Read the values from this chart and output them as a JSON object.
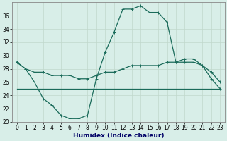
{
  "xlabel": "Humidex (Indice chaleur)",
  "ylabel": "",
  "bg_color": "#d8eee8",
  "grid_color": "#c0d8cc",
  "line_color": "#1a6b5a",
  "xlim": [
    -0.5,
    23.5
  ],
  "ylim": [
    20,
    38
  ],
  "yticks": [
    20,
    22,
    24,
    26,
    28,
    30,
    32,
    34,
    36
  ],
  "xticks": [
    0,
    1,
    2,
    3,
    4,
    5,
    6,
    7,
    8,
    9,
    10,
    11,
    12,
    13,
    14,
    15,
    16,
    17,
    18,
    19,
    20,
    21,
    22,
    23
  ],
  "series1_x": [
    0,
    1,
    2,
    3,
    4,
    5,
    6,
    7,
    8,
    9,
    10,
    11,
    12,
    13,
    14,
    15,
    16,
    17,
    18,
    19,
    20,
    21,
    22,
    23
  ],
  "series1_y": [
    29.0,
    28.0,
    26.0,
    23.5,
    22.5,
    21.0,
    20.5,
    20.5,
    21.0,
    26.5,
    30.5,
    33.5,
    37.0,
    37.0,
    37.5,
    36.5,
    36.5,
    35.0,
    29.0,
    29.5,
    29.5,
    28.5,
    26.5,
    25.0
  ],
  "series2_x": [
    0,
    1,
    2,
    3,
    4,
    5,
    6,
    7,
    8,
    9,
    10,
    11,
    12,
    13,
    14,
    15,
    16,
    17,
    18,
    19,
    20,
    21,
    22,
    23
  ],
  "series2_y": [
    25.0,
    25.0,
    25.0,
    25.0,
    25.0,
    25.0,
    25.0,
    25.0,
    25.0,
    25.0,
    25.0,
    25.0,
    25.0,
    25.0,
    25.0,
    25.0,
    25.0,
    25.0,
    25.0,
    25.0,
    25.0,
    25.0,
    25.0,
    25.0
  ],
  "series3_x": [
    0,
    1,
    2,
    3,
    4,
    5,
    6,
    7,
    8,
    9,
    10,
    11,
    12,
    13,
    14,
    15,
    16,
    17,
    18,
    19,
    20,
    21,
    22,
    23
  ],
  "series3_y": [
    29.0,
    28.0,
    27.5,
    27.5,
    27.0,
    27.0,
    27.0,
    26.5,
    26.5,
    27.0,
    27.5,
    27.5,
    28.0,
    28.5,
    28.5,
    28.5,
    28.5,
    29.0,
    29.0,
    29.0,
    29.0,
    28.5,
    27.5,
    26.0
  ],
  "xlabel_color": "#000066",
  "xlabel_fontsize": 6.5,
  "tick_fontsize": 5.5,
  "linewidth": 0.9,
  "marker_size": 2.5,
  "marker_ew": 0.7
}
